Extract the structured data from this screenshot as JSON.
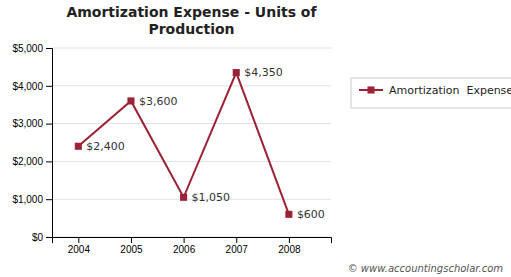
{
  "chart_data": {
    "type": "line",
    "title": "Amortization Expense - Units of\nProduction",
    "x": [
      2004,
      2005,
      2006,
      2007,
      2008
    ],
    "xlim": [
      2003.5,
      2008.8
    ],
    "xticks": [
      2004,
      2005,
      2006,
      2007,
      2008
    ],
    "ylim": [
      0,
      5000
    ],
    "yticks": [
      {
        "value": 0,
        "label": "$0"
      },
      {
        "value": 1000,
        "label": "$1,000"
      },
      {
        "value": 2000,
        "label": "$2,000"
      },
      {
        "value": 3000,
        "label": "$3,000"
      },
      {
        "value": 4000,
        "label": "$4,000"
      },
      {
        "value": 5000,
        "label": "$5,000"
      }
    ],
    "series": [
      {
        "name": "Amortization  Expense",
        "color": "#9B2335",
        "marker": "square",
        "values": [
          2400,
          3600,
          1050,
          4350,
          600
        ],
        "value_labels": [
          "$2,400",
          "$3,600",
          "$1,050",
          "$4,350",
          "$600"
        ]
      }
    ],
    "data_labels": true,
    "grid": true,
    "legend": "right",
    "annotations": [
      "© www.accountingscholar.com"
    ]
  }
}
